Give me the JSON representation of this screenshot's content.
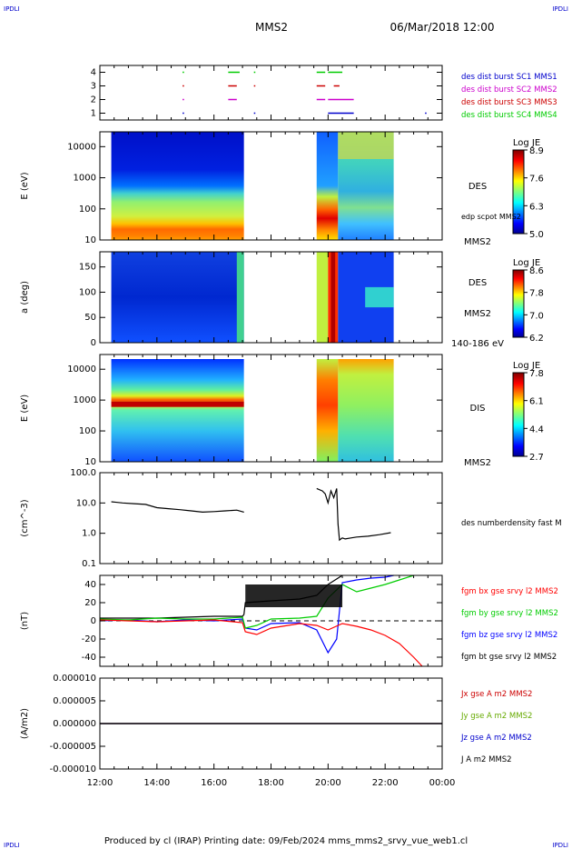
{
  "corner_labels": {
    "top_left": "IPDLI",
    "top_right": "IPDLI",
    "bottom_left": "IPDLI",
    "bottom_right": "IPDLI"
  },
  "header": {
    "spacecraft": "MMS2",
    "datetime": "06/Mar/2018 12:00"
  },
  "footer": {
    "text": "Produced by cl (IRAP)   Printing date: 09/Feb/2024   mms_mms2_srvy_vue_web1.cl"
  },
  "x_axis": {
    "ticks": [
      "12:00",
      "14:00",
      "16:00",
      "18:00",
      "20:00",
      "22:00",
      "00:00"
    ]
  },
  "chart_data": [
    {
      "type": "scatter",
      "panel": "burst",
      "y_ticks": [
        "1",
        "2",
        "3",
        "4"
      ],
      "ylim": [
        0.5,
        4.5
      ],
      "series": [
        {
          "name": "des dist burst SC1 MMS1",
          "color": "#0000cc",
          "y": 1,
          "segments": [
            [
              14.9,
              14.95
            ],
            [
              17.4,
              17.45
            ],
            [
              20.0,
              20.9
            ],
            [
              23.4,
              23.45
            ]
          ]
        },
        {
          "name": "des dist burst SC2 MMS2",
          "color": "#cc00cc",
          "y": 2,
          "segments": [
            [
              14.9,
              14.95
            ],
            [
              16.5,
              16.8
            ],
            [
              19.6,
              19.9
            ],
            [
              20.0,
              20.9
            ]
          ]
        },
        {
          "name": "des dist burst SC3 MMS3",
          "color": "#cc0000",
          "y": 3,
          "segments": [
            [
              14.9,
              14.95
            ],
            [
              16.5,
              16.8
            ],
            [
              17.4,
              17.45
            ],
            [
              19.6,
              19.9
            ],
            [
              20.2,
              20.4
            ]
          ]
        },
        {
          "name": "des dist burst SC4 MMS4",
          "color": "#00cc00",
          "y": 4,
          "segments": [
            [
              14.9,
              14.95
            ],
            [
              16.5,
              16.9
            ],
            [
              17.4,
              17.45
            ],
            [
              19.6,
              19.9
            ],
            [
              20.0,
              20.5
            ]
          ]
        }
      ]
    },
    {
      "type": "heatmap",
      "panel": "des_energy",
      "ylabel": "E (eV)",
      "y_ticks": [
        "10",
        "100",
        "1000",
        "10000"
      ],
      "ylog": true,
      "ylim": [
        10,
        30000
      ],
      "right_label": "DES",
      "right_sublabel": "edp scpot MMS2",
      "right_bottom": "MMS2",
      "colorbar": {
        "title": "Log JE",
        "ticks": [
          "8.9",
          "7.6",
          "6.3",
          "5.0"
        ],
        "range": [
          5.0,
          8.9
        ]
      },
      "data_intervals": [
        [
          12.4,
          17.05
        ],
        [
          19.6,
          22.3
        ]
      ]
    },
    {
      "type": "heatmap",
      "panel": "des_pitch",
      "ylabel": "a (deg)",
      "y_ticks": [
        "0",
        "50",
        "100",
        "150"
      ],
      "ylim": [
        0,
        180
      ],
      "right_label": "DES",
      "right_sublabel": "MMS2",
      "right_bottom": "140-186 eV",
      "colorbar": {
        "title": "Log JE",
        "ticks": [
          "8.6",
          "7.8",
          "7.0",
          "6.2"
        ],
        "range": [
          6.2,
          8.6
        ]
      },
      "data_intervals": [
        [
          12.4,
          17.05
        ],
        [
          19.6,
          22.3
        ]
      ]
    },
    {
      "type": "heatmap",
      "panel": "dis_energy",
      "ylabel": "E (eV)",
      "y_ticks": [
        "10",
        "100",
        "1000",
        "10000"
      ],
      "ylog": true,
      "ylim": [
        10,
        30000
      ],
      "right_label": "DIS",
      "right_bottom": "MMS2",
      "colorbar": {
        "title": "Log JE",
        "ticks": [
          "7.8",
          "6.1",
          "4.4",
          "2.7"
        ],
        "range": [
          2.7,
          7.8
        ]
      },
      "data_intervals": [
        [
          12.4,
          17.05
        ],
        [
          19.6,
          22.3
        ]
      ]
    },
    {
      "type": "line",
      "panel": "density",
      "ylabel": "(cm^-3)",
      "y_ticks": [
        "0.1",
        "1.0",
        "10.0",
        "100.0"
      ],
      "ylog": true,
      "ylim": [
        0.1,
        100
      ],
      "series": [
        {
          "name": "des numberdensity fast M",
          "color": "#000000",
          "x": [
            12.4,
            12.8,
            13.2,
            13.6,
            14.0,
            14.4,
            14.8,
            15.2,
            15.6,
            16.0,
            16.4,
            16.8,
            17.05
          ],
          "y": [
            11,
            10,
            9.5,
            9,
            7,
            6.5,
            6,
            5.5,
            5,
            5.2,
            5.5,
            5.8,
            5
          ]
        },
        {
          "name": "des numberdensity fast M (b)",
          "color": "#000000",
          "x": [
            19.6,
            19.8,
            19.9,
            20.0,
            20.1,
            20.2,
            20.3,
            20.35,
            20.4,
            20.5,
            20.6,
            20.8,
            21.0,
            21.4,
            21.8,
            22.2
          ],
          "y": [
            30,
            25,
            20,
            10,
            25,
            15,
            30,
            2,
            0.6,
            0.7,
            0.65,
            0.7,
            0.75,
            0.8,
            0.9,
            1.05
          ]
        }
      ]
    },
    {
      "type": "line",
      "panel": "magnetic_field",
      "ylabel": "(nT)",
      "y_ticks": [
        "-40",
        "-20",
        "0",
        "20",
        "40"
      ],
      "ylim": [
        -50,
        50
      ],
      "series": [
        {
          "name": "fgm bx gse srvy l2 MMS2",
          "color": "#ff0000",
          "x": [
            12.0,
            13.0,
            14.0,
            15.0,
            16.0,
            17.0,
            17.1,
            17.5,
            18.0,
            19.0,
            19.6,
            20.0,
            20.5,
            21.0,
            21.5,
            22.0,
            22.5,
            23.0,
            23.3
          ],
          "y": [
            1,
            0,
            -1,
            0,
            1,
            -2,
            -12,
            -15,
            -8,
            -3,
            -5,
            -10,
            -3,
            -6,
            -10,
            -16,
            -25,
            -40,
            -50
          ]
        },
        {
          "name": "fgm by gse srvy l2 MMS2",
          "color": "#00cc00",
          "x": [
            12.0,
            13.0,
            14.0,
            15.0,
            16.0,
            17.0,
            17.1,
            17.5,
            18.0,
            19.0,
            19.6,
            20.0,
            20.5,
            21.0,
            21.5,
            22.0,
            22.5,
            23.0
          ],
          "y": [
            2,
            1,
            3,
            2,
            2,
            4,
            -8,
            -5,
            2,
            3,
            5,
            25,
            40,
            32,
            36,
            40,
            45,
            50
          ]
        },
        {
          "name": "fgm bz gse srvy l2 MMS2",
          "color": "#0000ff",
          "x": [
            12.0,
            13.0,
            14.0,
            15.0,
            16.0,
            17.0,
            17.1,
            17.5,
            18.0,
            19.0,
            19.6,
            20.0,
            20.3,
            20.5,
            21.0,
            21.5,
            22.0,
            22.3
          ],
          "y": [
            0,
            1,
            -1,
            1,
            0,
            2,
            -8,
            -10,
            -3,
            -2,
            -10,
            -35,
            -20,
            42,
            45,
            47,
            48,
            50
          ]
        },
        {
          "name": "fgm bt gse srvy l2 MMS2",
          "color": "#000000",
          "x": [
            12.0,
            13.0,
            14.0,
            15.0,
            16.0,
            17.0,
            17.05,
            17.1,
            18.0,
            19.0,
            19.6,
            20.0,
            20.5
          ],
          "y": [
            3,
            3,
            3,
            4,
            5,
            5,
            7,
            20,
            22,
            24,
            28,
            40,
            50
          ]
        }
      ],
      "zero_line": 0
    },
    {
      "type": "line",
      "panel": "current_density",
      "ylabel": "(A/m2)",
      "y_ticks": [
        "-0.000010",
        "-0.000005",
        "0.000000",
        "0.000005",
        "0.000010"
      ],
      "ylim": [
        -1e-05,
        1e-05
      ],
      "series": [
        {
          "name": "Jx gse A m2 MMS2",
          "color": "#cc0000",
          "x": [
            12,
            17,
            17.05,
            20,
            20.4,
            24
          ],
          "y": [
            0,
            0,
            0,
            0,
            0,
            0
          ]
        },
        {
          "name": "Jy gse A m2 MMS2",
          "color": "#66aa00",
          "x": [
            12,
            24
          ],
          "y": [
            0,
            0
          ]
        },
        {
          "name": "Jz gse A m2 MMS2",
          "color": "#0000cc",
          "x": [
            12,
            24
          ],
          "y": [
            0,
            0
          ]
        },
        {
          "name": "J A m2 MMS2",
          "color": "#000000",
          "x": [
            12,
            24
          ],
          "y": [
            0,
            0
          ]
        }
      ]
    }
  ]
}
